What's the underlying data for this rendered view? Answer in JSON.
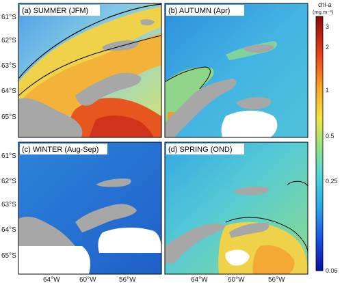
{
  "panels": [
    {
      "id": "summer",
      "label": "(a) SUMMER (JFM)"
    },
    {
      "id": "autumn",
      "label": "(b) AUTUMN (Apr)"
    },
    {
      "id": "winter",
      "label": "(c) WINTER (Aug-Sep)"
    },
    {
      "id": "spring",
      "label": "(d) SPRING (OND)"
    }
  ],
  "axes": {
    "lat_ticks": [
      "61°S",
      "62°S",
      "63°S",
      "64°S",
      "65°S"
    ],
    "lon_ticks": [
      "64°W",
      "60°W",
      "56°W"
    ]
  },
  "colorbar": {
    "title": "chl-a",
    "units": "(mg m⁻³)",
    "scale": "log",
    "ticks": [
      "3",
      "2",
      "1",
      "0.5",
      "0.25",
      "0.06"
    ]
  },
  "colors": {
    "land": "#a7a7a7",
    "no_data": "#ffffff",
    "contour": "#000000",
    "coastline_outline": "#222222"
  }
}
